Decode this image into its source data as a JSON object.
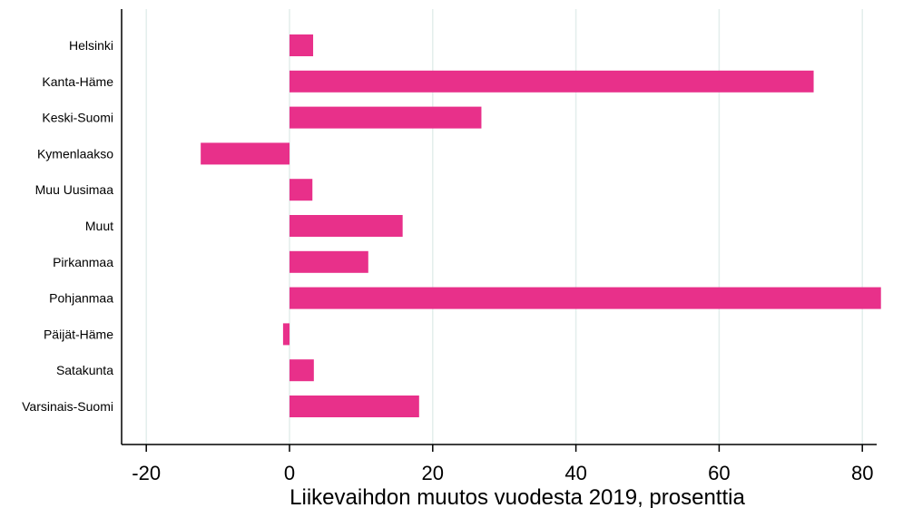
{
  "chart_data": {
    "type": "bar",
    "orientation": "horizontal",
    "title": "",
    "xlabel": "Liikevaihdon muutos vuodesta 2019, prosenttia",
    "ylabel": "",
    "xlim": [
      -24,
      84
    ],
    "xticks": [
      -20,
      0,
      20,
      40,
      60,
      80
    ],
    "tick_labels": [
      "-20",
      "0",
      "20",
      "40",
      "60",
      "80"
    ],
    "grid": true,
    "bar_color": "#e8308a",
    "grid_color": "#e3eeec",
    "categories": [
      "Helsinki",
      "Kanta-Häme",
      "Keski-Suomi",
      "Kymenlaakso",
      "Muu Uusimaa",
      "Muut",
      "Pirkanmaa",
      "Pohjanmaa",
      "Päijät-Häme",
      "Satakunta",
      "Varsinais-Suomi"
    ],
    "values": [
      3.3,
      73.2,
      26.8,
      -12.4,
      3.2,
      15.8,
      11.0,
      82.6,
      -0.9,
      3.4,
      18.1
    ]
  }
}
